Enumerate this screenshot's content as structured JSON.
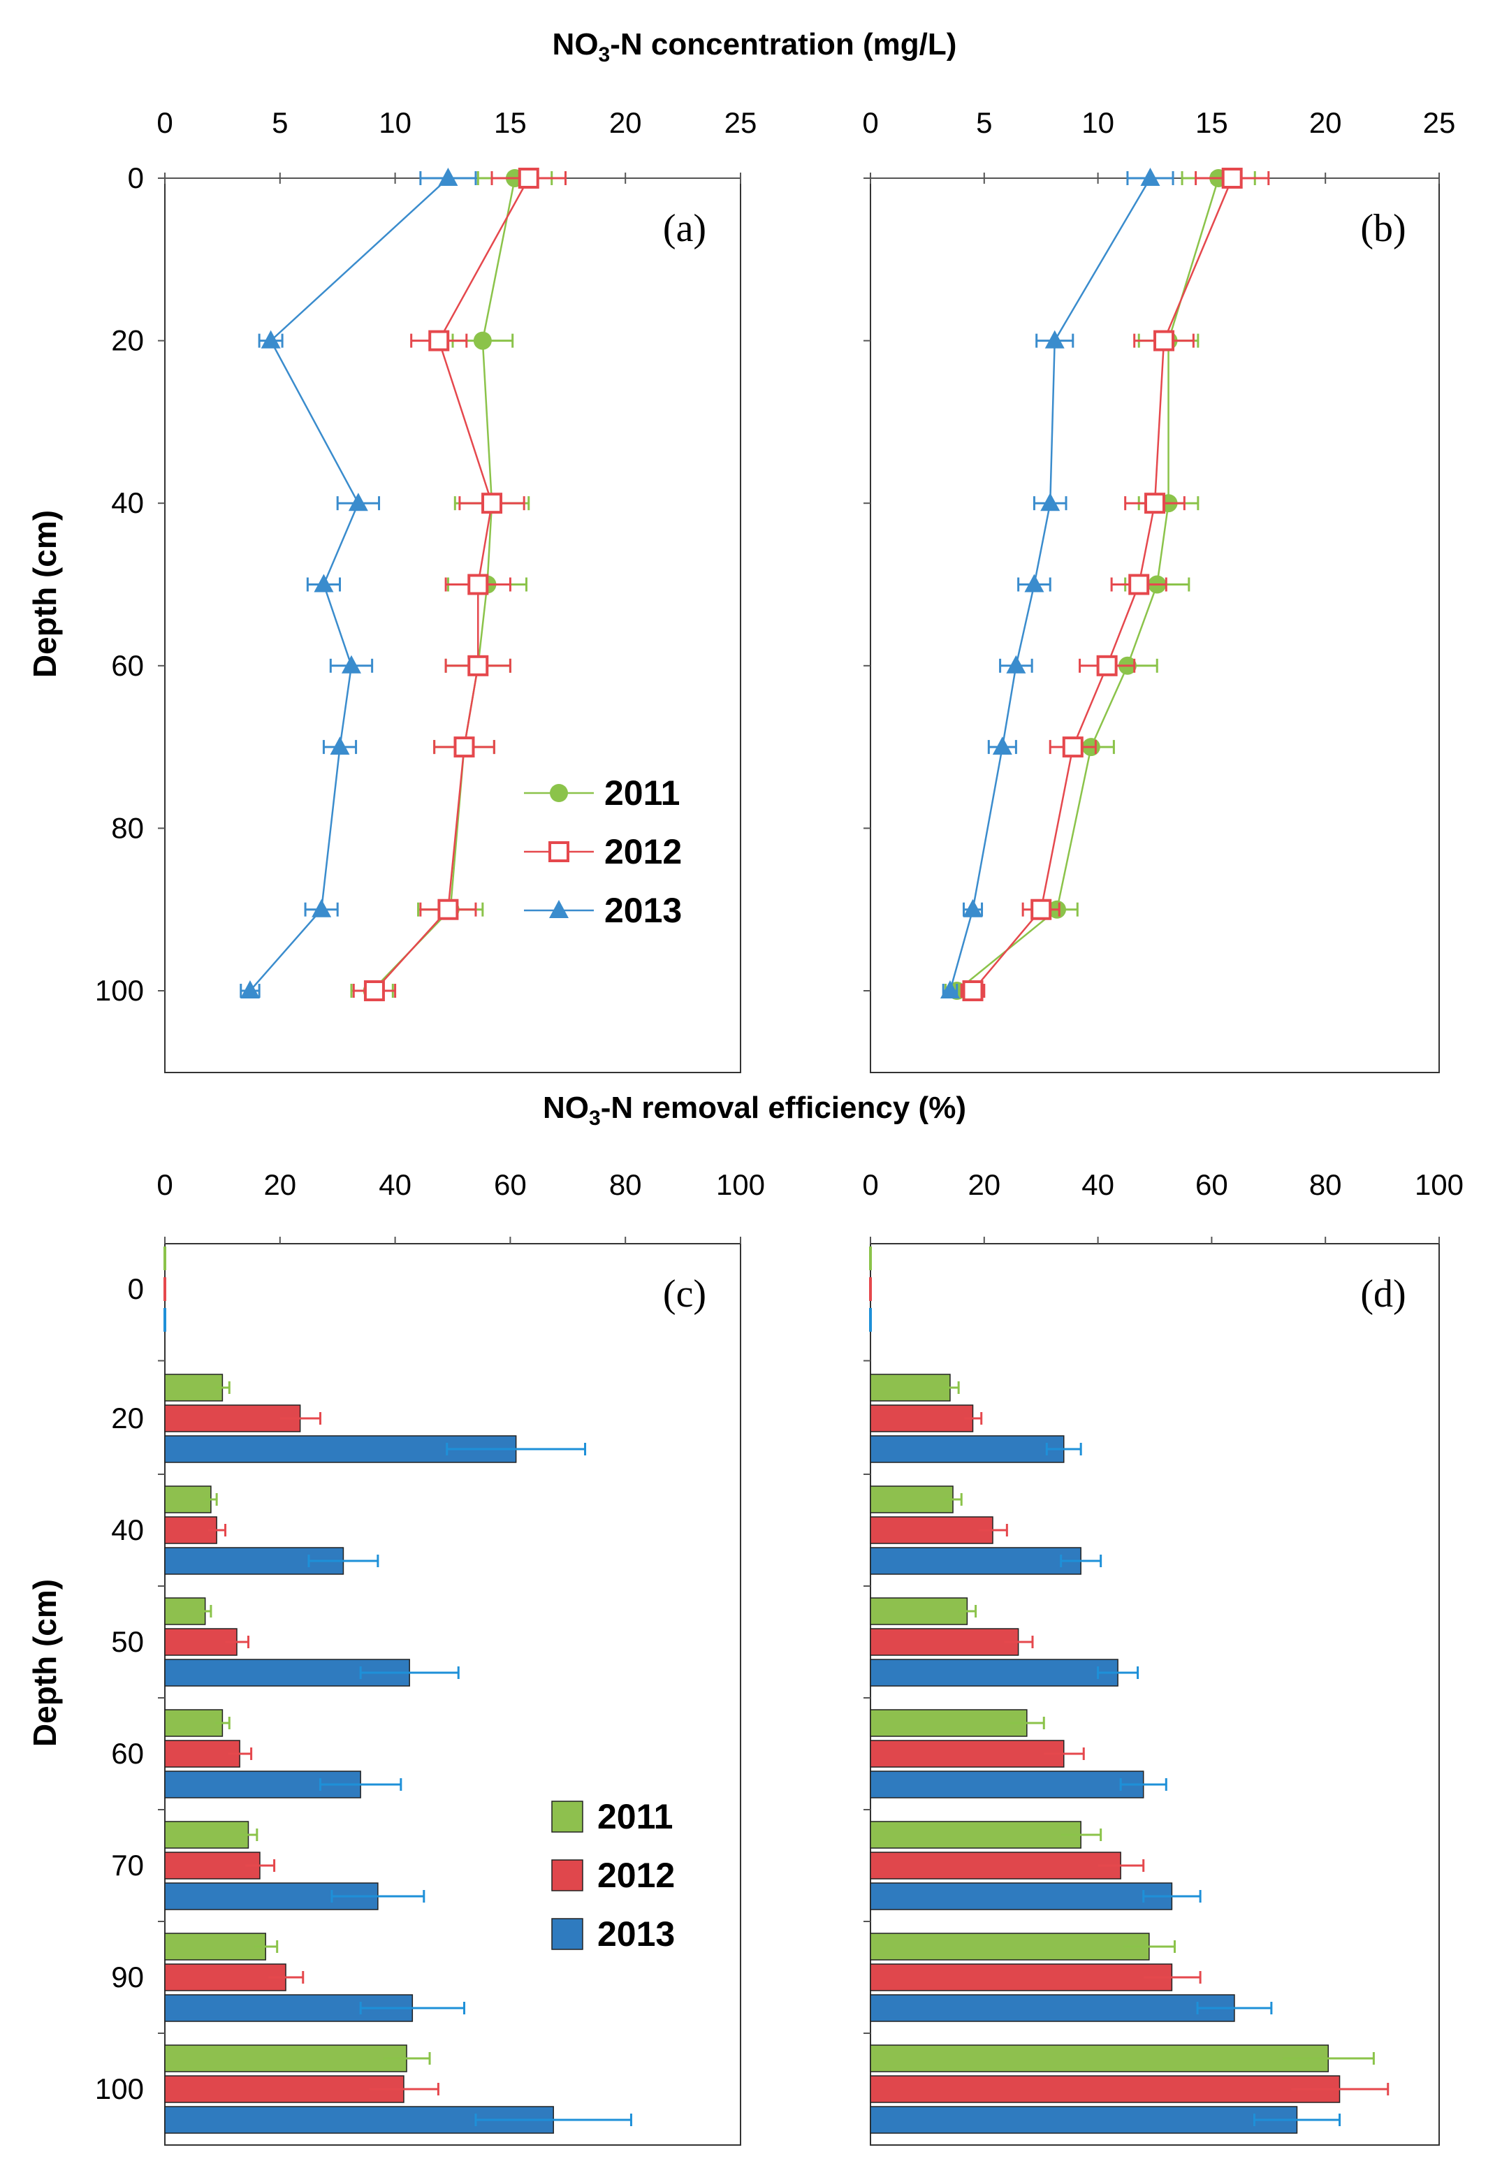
{
  "colors": {
    "y2011": "#8bc34a",
    "y2012": "#e5484d",
    "y2013": "#3a8ccd",
    "bar2011": "#8ec04e",
    "bar2012": "#e0474c",
    "bar2013": "#2f7bbf",
    "err2013": "#1e90d8"
  },
  "top": {
    "title_main": "NO",
    "title_sub": "3",
    "title_rest": "-N concentration (mg/L)",
    "ylabel": "Depth (cm)"
  },
  "bottom": {
    "title_main": "NO",
    "title_sub": "3",
    "title_rest": "-N removal efficiency (%)",
    "ylabel": "Depth (cm)"
  },
  "chart_data": [
    {
      "panel": "(a)",
      "type": "line",
      "title": "NO3-N concentration (mg/L)",
      "ylabel": "Depth (cm)",
      "xlim": [
        0,
        25
      ],
      "ylim": [
        110,
        0
      ],
      "x_ticks": [
        "0",
        "5",
        "10",
        "20",
        "25",
        "15"
      ],
      "x_tick_values": [
        0,
        5,
        10,
        20,
        25,
        15
      ],
      "y_ticks": [
        "0",
        "20",
        "40",
        "60",
        "80",
        "100"
      ],
      "y_tick_values": [
        0,
        20,
        40,
        60,
        80,
        100
      ],
      "legend": "right",
      "series": [
        {
          "name": "2011",
          "marker": "circle",
          "depths": [
            0,
            20,
            40,
            50,
            60,
            70,
            90,
            100
          ],
          "values": [
            15.2,
            13.8,
            14.2,
            14.0,
            13.6,
            13.0,
            12.4,
            9.0
          ],
          "errors": [
            1.6,
            1.3,
            1.6,
            1.7,
            1.4,
            1.3,
            1.4,
            0.9
          ]
        },
        {
          "name": "2012",
          "marker": "square",
          "depths": [
            0,
            20,
            40,
            50,
            60,
            70,
            90,
            100
          ],
          "values": [
            15.8,
            11.9,
            14.2,
            13.6,
            13.6,
            13.0,
            12.3,
            9.1
          ],
          "errors": [
            1.6,
            1.2,
            1.4,
            1.4,
            1.4,
            1.3,
            1.2,
            0.9
          ]
        },
        {
          "name": "2013",
          "marker": "triangle",
          "depths": [
            0,
            20,
            40,
            50,
            60,
            70,
            90,
            100
          ],
          "values": [
            12.3,
            4.6,
            8.4,
            6.9,
            8.1,
            7.6,
            6.8,
            3.7
          ],
          "errors": [
            1.2,
            0.5,
            0.9,
            0.7,
            0.9,
            0.7,
            0.7,
            0.4
          ]
        }
      ]
    },
    {
      "panel": "(b)",
      "type": "line",
      "xlim": [
        0,
        25
      ],
      "ylim": [
        110,
        0
      ],
      "x_ticks": [
        "0",
        "5",
        "10",
        "15",
        "20",
        "25"
      ],
      "x_tick_values": [
        0,
        5,
        10,
        15,
        20,
        25
      ],
      "series": [
        {
          "name": "2011",
          "marker": "circle",
          "depths": [
            0,
            20,
            40,
            50,
            60,
            70,
            90,
            100
          ],
          "values": [
            15.3,
            13.1,
            13.1,
            12.6,
            11.3,
            9.7,
            8.2,
            3.8
          ],
          "errors": [
            1.6,
            1.3,
            1.3,
            1.4,
            1.3,
            1.0,
            0.9,
            0.5
          ]
        },
        {
          "name": "2012",
          "marker": "square",
          "depths": [
            0,
            20,
            40,
            50,
            60,
            70,
            90,
            100
          ],
          "values": [
            15.9,
            12.9,
            12.5,
            11.8,
            10.4,
            8.9,
            7.5,
            4.5
          ],
          "errors": [
            1.6,
            1.3,
            1.3,
            1.2,
            1.2,
            1.0,
            0.8,
            0.5
          ]
        },
        {
          "name": "2013",
          "marker": "triangle",
          "depths": [
            0,
            20,
            40,
            50,
            60,
            70,
            90,
            100
          ],
          "values": [
            12.3,
            8.1,
            7.9,
            7.2,
            6.4,
            5.8,
            4.5,
            3.5
          ],
          "errors": [
            1.0,
            0.8,
            0.7,
            0.7,
            0.7,
            0.6,
            0.4,
            0.3
          ]
        }
      ]
    },
    {
      "panel": "(c)",
      "type": "bar",
      "title": "NO3-N removal efficiency (%)",
      "ylabel": "Depth (cm)",
      "xlim": [
        0,
        100
      ],
      "x_ticks": [
        "0",
        "20",
        "40",
        "60",
        "80",
        "100"
      ],
      "x_tick_values": [
        0,
        20,
        40,
        60,
        80,
        100
      ],
      "categories": [
        "0",
        "20",
        "40",
        "50",
        "60",
        "70",
        "90",
        "100"
      ],
      "legend": "right",
      "series": [
        {
          "name": "2011",
          "values": [
            0.3,
            10.0,
            8.0,
            7.0,
            10.0,
            14.5,
            17.5,
            42.0
          ],
          "errors": [
            0,
            1.2,
            1.0,
            1.0,
            1.2,
            1.5,
            2.0,
            4.0
          ]
        },
        {
          "name": "2012",
          "values": [
            0.3,
            23.5,
            9.0,
            12.5,
            13.0,
            16.5,
            21.0,
            41.5
          ],
          "errors": [
            0,
            3.5,
            1.5,
            2.0,
            2.0,
            2.5,
            3.0,
            6.0
          ]
        },
        {
          "name": "2013",
          "values": [
            0.3,
            61.0,
            31.0,
            42.5,
            34.0,
            37.0,
            43.0,
            67.5
          ],
          "errors": [
            0,
            12.0,
            6.0,
            8.5,
            7.0,
            8.0,
            9.0,
            13.5
          ]
        }
      ]
    },
    {
      "panel": "(d)",
      "type": "bar",
      "xlim": [
        0,
        100
      ],
      "x_ticks": [
        "0",
        "20",
        "40",
        "60",
        "80",
        "100"
      ],
      "x_tick_values": [
        0,
        20,
        40,
        60,
        80,
        100
      ],
      "categories": [
        "0",
        "20",
        "40",
        "50",
        "60",
        "70",
        "90",
        "100"
      ],
      "series": [
        {
          "name": "2011",
          "values": [
            0.3,
            14.0,
            14.5,
            17.0,
            27.5,
            37.0,
            49.0,
            80.5
          ],
          "errors": [
            0,
            1.5,
            1.5,
            1.5,
            3.0,
            3.5,
            4.5,
            8.0
          ]
        },
        {
          "name": "2012",
          "values": [
            0.3,
            18.0,
            21.5,
            26.0,
            34.0,
            44.0,
            53.0,
            82.5
          ],
          "errors": [
            0,
            1.5,
            2.5,
            2.5,
            3.5,
            4.0,
            5.0,
            8.5
          ]
        },
        {
          "name": "2013",
          "values": [
            0.3,
            34.0,
            37.0,
            43.5,
            48.0,
            53.0,
            64.0,
            75.0
          ],
          "errors": [
            0,
            3.0,
            3.5,
            3.5,
            4.0,
            5.0,
            6.5,
            7.5
          ]
        }
      ]
    }
  ]
}
